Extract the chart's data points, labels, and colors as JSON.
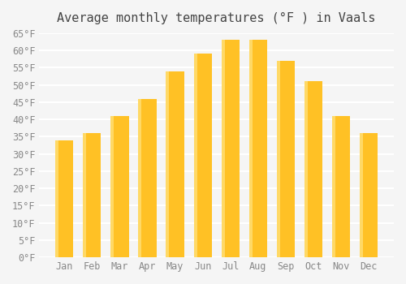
{
  "title": "Average monthly temperatures (°F ) in Vaals",
  "months": [
    "Jan",
    "Feb",
    "Mar",
    "Apr",
    "May",
    "Jun",
    "Jul",
    "Aug",
    "Sep",
    "Oct",
    "Nov",
    "Dec"
  ],
  "values": [
    34,
    36,
    41,
    46,
    54,
    59,
    63,
    63,
    57,
    51,
    41,
    36
  ],
  "bar_color_face": "#FFC125",
  "bar_color_edge": "#FFD700",
  "bar_gradient_top": "#FFD966",
  "ylim": [
    0,
    65
  ],
  "yticks": [
    0,
    5,
    10,
    15,
    20,
    25,
    30,
    35,
    40,
    45,
    50,
    55,
    60,
    65
  ],
  "background_color": "#F5F5F5",
  "grid_color": "#FFFFFF",
  "title_fontsize": 11,
  "tick_fontsize": 8.5
}
